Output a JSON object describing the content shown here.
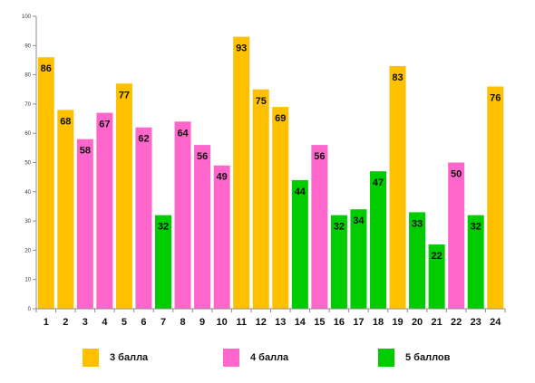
{
  "chart_data": {
    "type": "bar",
    "categories": [
      "1",
      "2",
      "3",
      "4",
      "5",
      "6",
      "7",
      "8",
      "9",
      "10",
      "11",
      "12",
      "13",
      "14",
      "15",
      "16",
      "17",
      "18",
      "19",
      "20",
      "21",
      "22",
      "23",
      "24"
    ],
    "values": [
      86,
      68,
      58,
      67,
      77,
      62,
      32,
      64,
      56,
      49,
      93,
      75,
      69,
      44,
      56,
      32,
      34,
      47,
      83,
      33,
      22,
      50,
      32,
      76
    ],
    "groups": [
      "3 балла",
      "3 балла",
      "4 балла",
      "4 балла",
      "3 балла",
      "4 балла",
      "5 баллов",
      "4 балла",
      "4 балла",
      "4 балла",
      "3 балла",
      "3 балла",
      "3 балла",
      "5 баллов",
      "4 балла",
      "5 баллов",
      "5 баллов",
      "5 баллов",
      "3 балла",
      "5 баллов",
      "5 баллов",
      "4 балла",
      "5 баллов",
      "3 балла"
    ],
    "legend": [
      {
        "name": "3 балла",
        "color": "#FFC000"
      },
      {
        "name": "4 балла",
        "color": "#FF66CC"
      },
      {
        "name": "5 баллов",
        "color": "#00CC00"
      }
    ],
    "yticks": [
      0,
      10,
      20,
      30,
      40,
      50,
      60,
      70,
      80,
      90,
      100
    ],
    "ylim": [
      0,
      100
    ],
    "grid": false,
    "legend_position": "bottom",
    "title": "",
    "xlabel": "",
    "ylabel": ""
  }
}
